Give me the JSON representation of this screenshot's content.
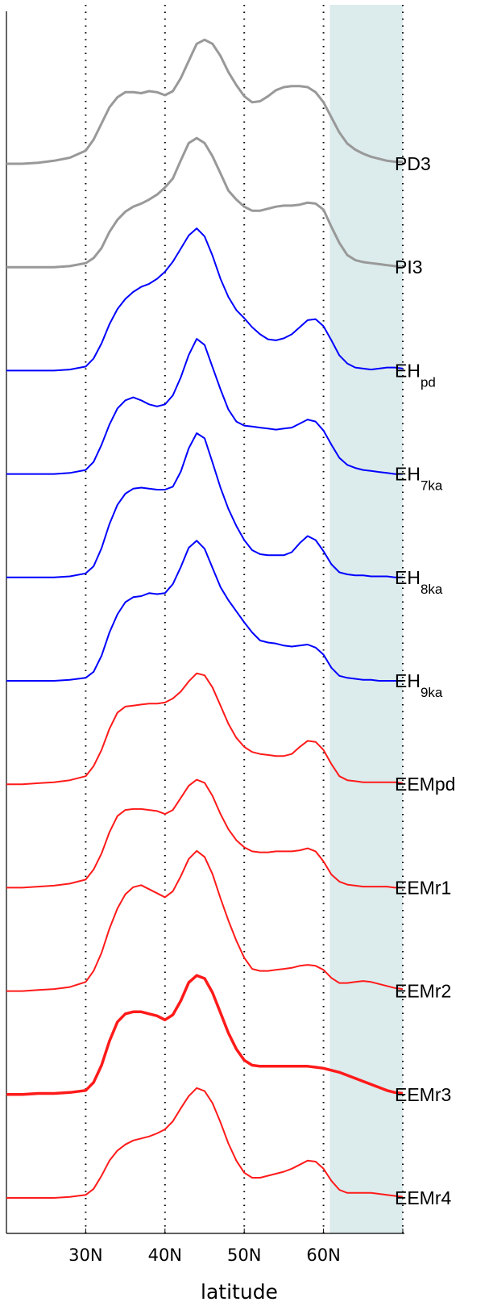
{
  "chart_data": {
    "type": "line",
    "title": "",
    "xlabel": "latitude",
    "ylabel": "",
    "xlim": [
      20,
      70
    ],
    "xticks": [
      {
        "value": 30,
        "label": "30N"
      },
      {
        "value": 40,
        "label": "40N"
      },
      {
        "value": 50,
        "label": "50N"
      },
      {
        "value": 60,
        "label": "60N"
      },
      {
        "value": 70,
        "label": ""
      }
    ],
    "grid": "dotted vertical lines at 30N, 40N, 50N, 60N, 70N",
    "shaded_region": {
      "x": [
        60.8,
        70
      ],
      "color": "#dcebec"
    },
    "y_values": "relative amplitude; each curve offset vertically, no y-axis ticks",
    "x": [
      20,
      22,
      24,
      26,
      28,
      30,
      31,
      32,
      33,
      34,
      35,
      36,
      37,
      38,
      39,
      40,
      41,
      42,
      43,
      44,
      45,
      46,
      47,
      48,
      49,
      50,
      51,
      52,
      53,
      54,
      55,
      56,
      57,
      58,
      59,
      60,
      61,
      62,
      63,
      64,
      65,
      66,
      67,
      68,
      69,
      70
    ],
    "series": [
      {
        "name": "PD3",
        "sub": "",
        "color": "#999999",
        "width": 3,
        "values": [
          0,
          0,
          0.01,
          0.03,
          0.06,
          0.13,
          0.24,
          0.4,
          0.56,
          0.66,
          0.71,
          0.71,
          0.7,
          0.72,
          0.71,
          0.68,
          0.72,
          0.85,
          1.02,
          1.19,
          1.23,
          1.19,
          1.07,
          0.91,
          0.78,
          0.67,
          0.61,
          0.62,
          0.67,
          0.73,
          0.76,
          0.77,
          0.77,
          0.76,
          0.71,
          0.61,
          0.46,
          0.31,
          0.2,
          0.14,
          0.1,
          0.07,
          0.05,
          0.03,
          0.02,
          0.02
        ]
      },
      {
        "name": "PI3",
        "sub": "",
        "color": "#999999",
        "width": 3,
        "values": [
          0,
          0,
          0,
          0,
          0.01,
          0.04,
          0.09,
          0.19,
          0.35,
          0.47,
          0.55,
          0.6,
          0.63,
          0.67,
          0.72,
          0.79,
          0.88,
          1.06,
          1.23,
          1.28,
          1.23,
          1.1,
          0.93,
          0.76,
          0.67,
          0.6,
          0.56,
          0.56,
          0.58,
          0.6,
          0.61,
          0.61,
          0.62,
          0.64,
          0.63,
          0.57,
          0.4,
          0.24,
          0.12,
          0.07,
          0.05,
          0.04,
          0.03,
          0.02,
          0.01,
          0
        ]
      },
      {
        "name": "EH",
        "sub": "pd",
        "color": "#0000ff",
        "width": 2,
        "values": [
          0,
          0,
          0,
          0,
          0.01,
          0.04,
          0.12,
          0.27,
          0.46,
          0.61,
          0.71,
          0.78,
          0.83,
          0.86,
          0.91,
          0.98,
          1.08,
          1.21,
          1.34,
          1.41,
          1.33,
          1.14,
          0.91,
          0.73,
          0.6,
          0.52,
          0.43,
          0.36,
          0.31,
          0.3,
          0.32,
          0.36,
          0.43,
          0.5,
          0.51,
          0.44,
          0.3,
          0.15,
          0.07,
          0.03,
          0.02,
          0.01,
          0.02,
          0.03,
          0.03,
          0.02
        ]
      },
      {
        "name": "EH",
        "sub": "7ka",
        "color": "#0000ff",
        "width": 2,
        "values": [
          0,
          0,
          0,
          0,
          0.01,
          0.04,
          0.12,
          0.29,
          0.49,
          0.65,
          0.73,
          0.76,
          0.73,
          0.69,
          0.67,
          0.69,
          0.78,
          0.96,
          1.18,
          1.34,
          1.28,
          1.06,
          0.84,
          0.64,
          0.52,
          0.48,
          0.47,
          0.46,
          0.45,
          0.44,
          0.45,
          0.46,
          0.5,
          0.54,
          0.52,
          0.43,
          0.29,
          0.16,
          0.09,
          0.06,
          0.04,
          0.03,
          0.02,
          0.01,
          0,
          0
        ]
      },
      {
        "name": "EH",
        "sub": "8ka",
        "color": "#0000ff",
        "width": 2,
        "values": [
          0,
          0,
          0,
          0,
          0.01,
          0.04,
          0.11,
          0.29,
          0.53,
          0.72,
          0.83,
          0.88,
          0.89,
          0.88,
          0.87,
          0.87,
          0.9,
          1.05,
          1.28,
          1.43,
          1.38,
          1.14,
          0.89,
          0.68,
          0.51,
          0.37,
          0.27,
          0.23,
          0.22,
          0.22,
          0.22,
          0.25,
          0.34,
          0.41,
          0.37,
          0.26,
          0.13,
          0.05,
          0.03,
          0.02,
          0.02,
          0.01,
          0.01,
          0.01,
          0,
          0
        ]
      },
      {
        "name": "EH",
        "sub": "9ka",
        "color": "#0000ff",
        "width": 2,
        "values": [
          0,
          0,
          0,
          0,
          0.01,
          0.03,
          0.09,
          0.25,
          0.48,
          0.66,
          0.78,
          0.83,
          0.84,
          0.87,
          0.86,
          0.87,
          0.96,
          1.13,
          1.32,
          1.39,
          1.31,
          1.12,
          0.93,
          0.8,
          0.69,
          0.58,
          0.48,
          0.4,
          0.38,
          0.37,
          0.35,
          0.34,
          0.35,
          0.36,
          0.33,
          0.26,
          0.13,
          0.05,
          0.03,
          0.02,
          0.01,
          0.01,
          0,
          0,
          0,
          0
        ]
      },
      {
        "name": "EEMpd",
        "sub": "",
        "color": "#ff1a1a",
        "width": 2,
        "values": [
          0,
          0,
          0.01,
          0.02,
          0.04,
          0.08,
          0.18,
          0.34,
          0.55,
          0.71,
          0.77,
          0.78,
          0.79,
          0.8,
          0.8,
          0.81,
          0.85,
          0.92,
          1.02,
          1.1,
          1.08,
          0.96,
          0.78,
          0.6,
          0.46,
          0.37,
          0.32,
          0.3,
          0.29,
          0.28,
          0.28,
          0.3,
          0.37,
          0.43,
          0.42,
          0.34,
          0.2,
          0.08,
          0.04,
          0.03,
          0.02,
          0.02,
          0.02,
          0.02,
          0.02,
          0.01
        ]
      },
      {
        "name": "EEMr1",
        "sub": "",
        "color": "#ff1a1a",
        "width": 2,
        "values": [
          0,
          0,
          0.01,
          0.02,
          0.04,
          0.08,
          0.18,
          0.34,
          0.55,
          0.71,
          0.77,
          0.78,
          0.78,
          0.77,
          0.76,
          0.73,
          0.77,
          0.89,
          1.01,
          1.07,
          1.04,
          0.91,
          0.73,
          0.58,
          0.47,
          0.4,
          0.36,
          0.35,
          0.35,
          0.36,
          0.36,
          0.36,
          0.37,
          0.39,
          0.36,
          0.26,
          0.13,
          0.06,
          0.03,
          0.02,
          0.01,
          0.01,
          0.01,
          0.01,
          0,
          0
        ]
      },
      {
        "name": "EEMr2",
        "sub": "",
        "color": "#ff1a1a",
        "width": 2,
        "values": [
          0,
          0,
          0.01,
          0.02,
          0.04,
          0.09,
          0.2,
          0.38,
          0.62,
          0.82,
          0.96,
          1.03,
          1.05,
          1.01,
          0.97,
          0.93,
          0.99,
          1.14,
          1.31,
          1.39,
          1.33,
          1.16,
          0.92,
          0.7,
          0.5,
          0.33,
          0.22,
          0.2,
          0.2,
          0.21,
          0.22,
          0.23,
          0.25,
          0.26,
          0.25,
          0.21,
          0.13,
          0.08,
          0.08,
          0.09,
          0.1,
          0.09,
          0.07,
          0.05,
          0.03,
          0.02
        ]
      },
      {
        "name": "EEMr3",
        "sub": "",
        "color": "#ff1a1a",
        "width": 3.5,
        "values": [
          0,
          0,
          0.01,
          0.01,
          0.02,
          0.04,
          0.12,
          0.29,
          0.53,
          0.72,
          0.8,
          0.82,
          0.82,
          0.8,
          0.78,
          0.74,
          0.79,
          0.93,
          1.11,
          1.18,
          1.15,
          1.01,
          0.81,
          0.61,
          0.45,
          0.34,
          0.29,
          0.28,
          0.28,
          0.28,
          0.28,
          0.28,
          0.28,
          0.28,
          0.27,
          0.26,
          0.24,
          0.22,
          0.19,
          0.16,
          0.13,
          0.1,
          0.07,
          0.04,
          0.02,
          0.01
        ]
      },
      {
        "name": "EEMr4",
        "sub": "",
        "color": "#ff1a1a",
        "width": 2,
        "values": [
          0,
          0,
          0,
          0,
          0.01,
          0.03,
          0.09,
          0.22,
          0.37,
          0.47,
          0.53,
          0.57,
          0.59,
          0.61,
          0.64,
          0.68,
          0.76,
          0.89,
          1.01,
          1.09,
          1.06,
          0.94,
          0.75,
          0.54,
          0.37,
          0.25,
          0.2,
          0.2,
          0.22,
          0.24,
          0.26,
          0.29,
          0.33,
          0.37,
          0.36,
          0.29,
          0.17,
          0.08,
          0.05,
          0.05,
          0.05,
          0.05,
          0.04,
          0.03,
          0.02,
          0.01
        ]
      }
    ]
  }
}
